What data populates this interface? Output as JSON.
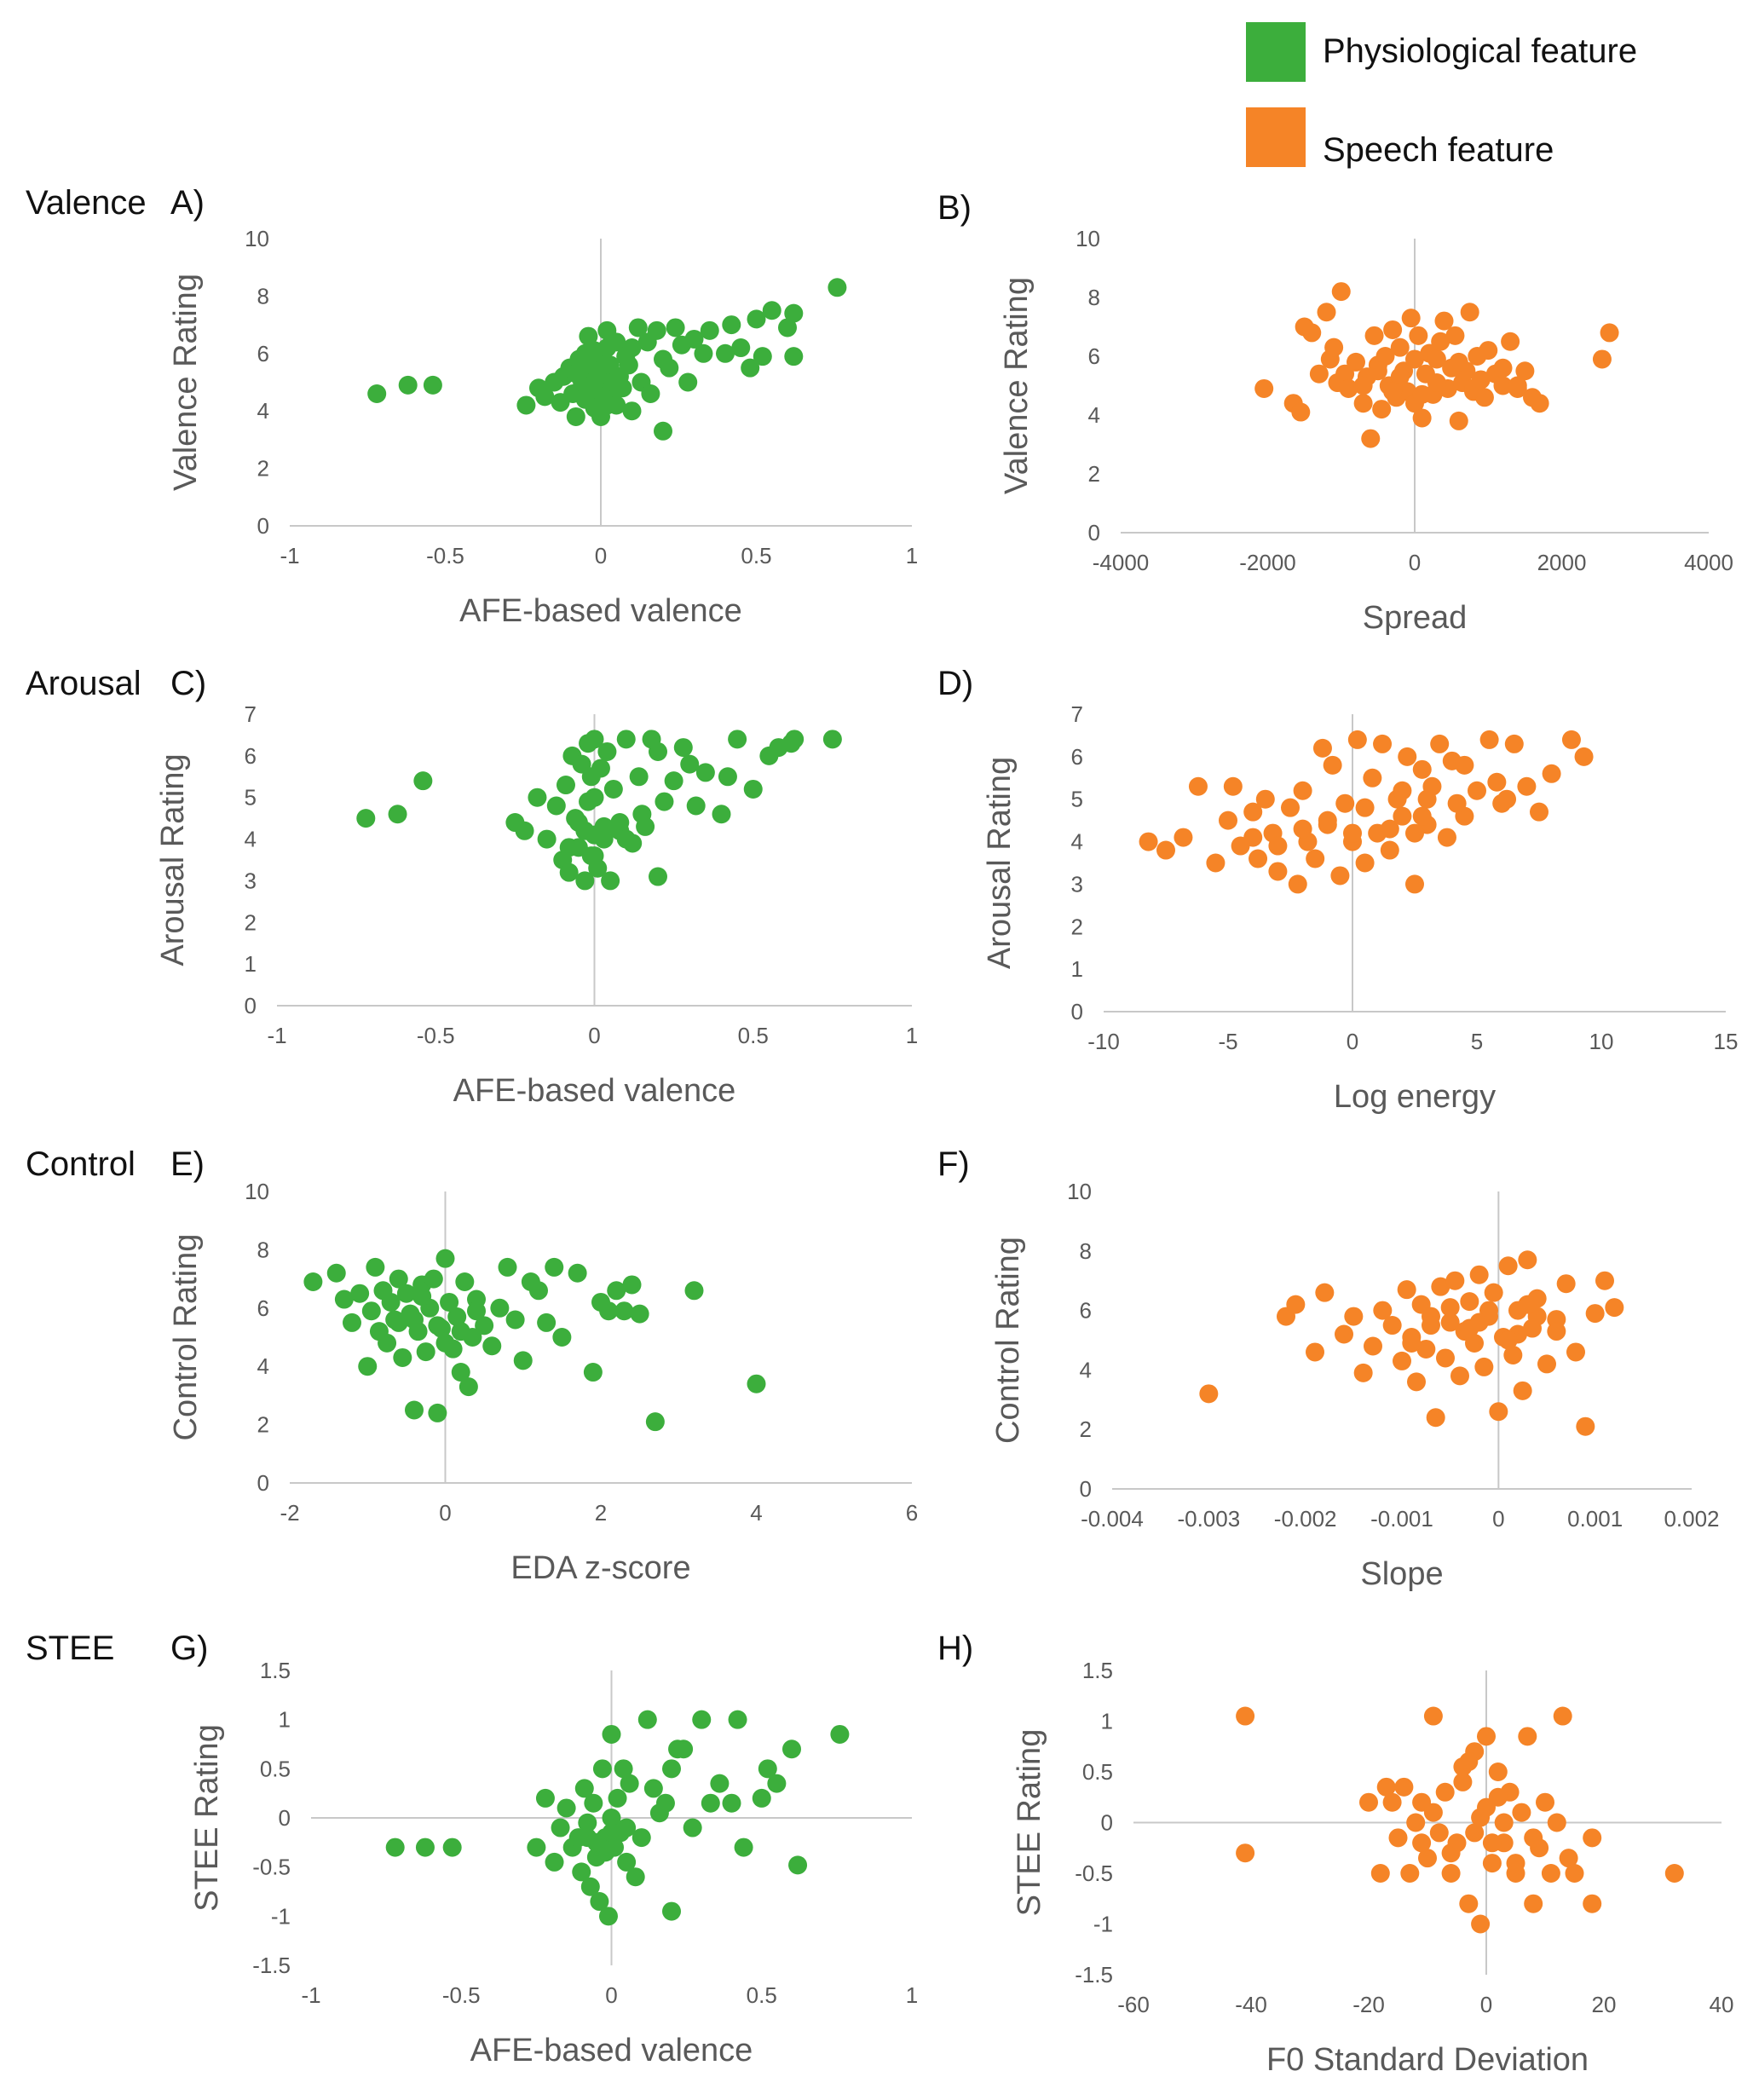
{
  "legend": {
    "items": [
      {
        "label": "Physiological feature",
        "color": "#3cae3c"
      },
      {
        "label": "Speech feature",
        "color": "#f58427"
      }
    ]
  },
  "row_labels": [
    "Valence",
    "Arousal",
    "Control",
    "STEE"
  ],
  "chart_data": [
    {
      "panel": "A)",
      "type": "scatter",
      "color": "#3cae3c",
      "xlabel": "AFE-based valence",
      "ylabel": "Valence Rating",
      "xlim": [
        -1,
        1
      ],
      "ylim": [
        0,
        10
      ],
      "xticks": [
        -1,
        -0.5,
        0,
        0.5,
        1
      ],
      "yticks": [
        0,
        2,
        4,
        6,
        8,
        10
      ],
      "x": [
        -0.72,
        -0.62,
        -0.54,
        -0.24,
        -0.2,
        -0.18,
        -0.15,
        -0.13,
        -0.12,
        -0.1,
        -0.09,
        -0.08,
        -0.07,
        -0.06,
        -0.05,
        -0.05,
        -0.04,
        -0.04,
        -0.03,
        -0.03,
        -0.02,
        -0.02,
        -0.01,
        -0.01,
        0,
        0,
        0,
        0.01,
        0.01,
        0.02,
        0.02,
        0.03,
        0.03,
        0.04,
        0.05,
        0.06,
        0.07,
        0.08,
        0.09,
        0.1,
        0.12,
        0.13,
        0.15,
        0.16,
        0.18,
        0.2,
        0.2,
        0.22,
        0.24,
        0.26,
        0.28,
        0.3,
        0.33,
        0.35,
        0.4,
        0.42,
        0.45,
        0.48,
        0.5,
        0.52,
        0.55,
        0.6,
        0.62,
        0.62,
        0.76,
        0.1,
        0.02,
        -0.08,
        0.05,
        -0.02
      ],
      "y": [
        4.6,
        4.9,
        4.9,
        4.2,
        4.8,
        4.5,
        5.0,
        4.3,
        5.2,
        5.5,
        4.6,
        3.8,
        5.8,
        5.0,
        4.4,
        6.0,
        5.2,
        6.6,
        4.9,
        5.6,
        4.4,
        6.1,
        4.7,
        5.4,
        3.8,
        5.0,
        6.0,
        4.5,
        5.3,
        6.8,
        4.2,
        5.6,
        4.6,
        5.0,
        6.4,
        5.2,
        4.8,
        5.9,
        5.6,
        4.0,
        6.9,
        5.0,
        6.4,
        4.6,
        6.8,
        3.3,
        5.8,
        5.5,
        6.9,
        6.3,
        5.0,
        6.5,
        6.0,
        6.8,
        6.0,
        7.0,
        6.2,
        5.5,
        7.2,
        5.9,
        7.5,
        6.9,
        7.4,
        5.9,
        8.3,
        6.2,
        6.2,
        5.3,
        4.2,
        4.1
      ]
    },
    {
      "panel": "B)",
      "type": "scatter",
      "color": "#f58427",
      "xlabel": "Spread",
      "ylabel": "Valence Rating",
      "xlim": [
        -4000,
        4000
      ],
      "ylim": [
        0,
        10
      ],
      "xticks": [
        -4000,
        -2000,
        0,
        2000,
        4000
      ],
      "yticks": [
        0,
        2,
        4,
        6,
        8,
        10
      ],
      "x": [
        -2050,
        -1650,
        -1550,
        -1500,
        -1400,
        -1300,
        -1200,
        -1150,
        -1100,
        -1050,
        -1000,
        -950,
        -900,
        -800,
        -700,
        -650,
        -600,
        -550,
        -500,
        -450,
        -400,
        -350,
        -300,
        -250,
        -200,
        -150,
        -100,
        -50,
        0,
        0,
        50,
        100,
        150,
        200,
        250,
        300,
        350,
        400,
        450,
        500,
        550,
        600,
        650,
        700,
        750,
        800,
        850,
        900,
        950,
        1000,
        1100,
        1200,
        1300,
        1400,
        1500,
        1600,
        1700,
        2550,
        2650,
        -700,
        -200,
        300,
        800,
        1200,
        -500,
        100,
        600,
        -300,
        900,
        1400
      ],
      "y": [
        4.9,
        4.4,
        4.1,
        7.0,
        6.8,
        5.4,
        7.5,
        5.9,
        6.3,
        5.1,
        8.2,
        5.4,
        4.9,
        5.8,
        4.4,
        5.3,
        3.2,
        6.7,
        5.7,
        4.2,
        6.0,
        5.0,
        6.9,
        4.6,
        6.3,
        5.5,
        4.8,
        7.3,
        5.9,
        4.4,
        6.7,
        3.9,
        5.4,
        6.1,
        4.7,
        5.9,
        6.5,
        7.2,
        4.9,
        5.6,
        6.7,
        3.8,
        5.1,
        5.5,
        7.5,
        4.8,
        6.0,
        5.2,
        4.6,
        6.2,
        5.4,
        5.0,
        6.5,
        4.9,
        5.5,
        4.6,
        4.4,
        5.9,
        6.8,
        5.0,
        5.3,
        5.1,
        4.9,
        5.6,
        5.5,
        4.7,
        5.8,
        4.8,
        5.2,
        5.0
      ]
    },
    {
      "panel": "C)",
      "type": "scatter",
      "color": "#3cae3c",
      "xlabel": "AFE-based valence",
      "ylabel": "Arousal Rating",
      "xlim": [
        -1,
        1
      ],
      "ylim": [
        0,
        7
      ],
      "xticks": [
        -1,
        -0.5,
        0,
        0.5,
        1
      ],
      "yticks": [
        0,
        1,
        2,
        3,
        4,
        5,
        6,
        7
      ],
      "x": [
        -0.72,
        -0.62,
        -0.54,
        -0.25,
        -0.22,
        -0.18,
        -0.15,
        -0.12,
        -0.1,
        -0.09,
        -0.08,
        -0.07,
        -0.06,
        -0.05,
        -0.04,
        -0.03,
        -0.03,
        -0.02,
        -0.02,
        -0.01,
        -0.01,
        0,
        0,
        0,
        0.01,
        0.02,
        0.03,
        0.04,
        0.05,
        0.06,
        0.08,
        0.1,
        0.12,
        0.14,
        0.16,
        0.18,
        0.2,
        0.2,
        0.22,
        0.25,
        0.28,
        0.3,
        0.32,
        0.35,
        0.4,
        0.42,
        0.45,
        0.5,
        0.55,
        0.58,
        0.62,
        0.63,
        0.75,
        -0.05,
        0.03,
        0.08,
        -0.08,
        0.15,
        0.0,
        0.1
      ],
      "y": [
        4.5,
        4.6,
        5.4,
        4.4,
        4.2,
        5.0,
        4.0,
        4.8,
        3.5,
        5.3,
        3.2,
        6.0,
        4.5,
        3.8,
        5.8,
        3.0,
        4.2,
        6.3,
        4.9,
        3.6,
        5.5,
        4.1,
        5.0,
        6.4,
        3.3,
        5.7,
        4.3,
        6.1,
        3.0,
        5.2,
        4.4,
        6.4,
        3.9,
        5.5,
        4.3,
        6.4,
        3.1,
        6.1,
        4.9,
        5.4,
        6.2,
        5.8,
        4.8,
        5.6,
        4.6,
        5.5,
        6.4,
        5.2,
        6.0,
        6.2,
        6.3,
        6.4,
        6.4,
        4.4,
        4.0,
        4.2,
        3.8,
        4.6,
        3.6,
        4.0
      ]
    },
    {
      "panel": "D)",
      "type": "scatter",
      "color": "#f58427",
      "xlabel": "Log energy",
      "ylabel": "Arousal Rating",
      "xlim": [
        -10,
        15
      ],
      "ylim": [
        0,
        7
      ],
      "xticks": [
        -10,
        -5,
        0,
        5,
        10,
        15
      ],
      "yticks": [
        0,
        1,
        2,
        3,
        4,
        5,
        6,
        7
      ],
      "x": [
        -8.2,
        -7.5,
        -6.8,
        -6.2,
        -5.5,
        -5.0,
        -4.8,
        -4.5,
        -4.0,
        -3.8,
        -3.5,
        -3.2,
        -3.0,
        -2.5,
        -2.2,
        -2.0,
        -1.8,
        -1.5,
        -1.2,
        -1.0,
        -0.8,
        -0.5,
        -0.3,
        0,
        0.2,
        0.5,
        0.8,
        1.0,
        1.2,
        1.5,
        1.8,
        2.0,
        2.2,
        2.5,
        2.8,
        3.0,
        3.2,
        3.5,
        3.8,
        4.0,
        4.5,
        5.0,
        5.5,
        6.0,
        6.5,
        7.0,
        7.5,
        8.0,
        8.8,
        9.3,
        -1.0,
        0.5,
        2.5,
        4.2,
        -3.0,
        1.5,
        3.0,
        5.8,
        -2.0,
        0.0,
        2.0,
        4.5,
        6.2,
        -4.0,
        2.8
      ],
      "y": [
        4.0,
        3.8,
        4.1,
        5.3,
        3.5,
        4.5,
        5.3,
        3.9,
        4.7,
        3.6,
        5.0,
        4.2,
        3.3,
        4.8,
        3.0,
        5.2,
        4.0,
        3.6,
        6.2,
        4.4,
        5.8,
        3.2,
        4.9,
        4.0,
        6.4,
        3.5,
        5.5,
        4.2,
        6.3,
        3.8,
        5.0,
        4.6,
        6.0,
        3.0,
        5.7,
        4.4,
        5.3,
        6.3,
        4.1,
        5.9,
        4.6,
        5.2,
        6.4,
        4.9,
        6.3,
        5.3,
        4.7,
        5.6,
        6.4,
        6.0,
        4.5,
        4.8,
        4.2,
        4.9,
        3.9,
        4.3,
        5.0,
        5.4,
        4.3,
        4.2,
        5.2,
        5.8,
        5.0,
        4.1,
        4.6
      ]
    },
    {
      "panel": "E)",
      "type": "scatter",
      "color": "#3cae3c",
      "xlabel": "EDA z-score",
      "ylabel": "Control Rating",
      "xlim": [
        -2,
        6
      ],
      "ylim": [
        0,
        10
      ],
      "xticks": [
        -2,
        0,
        2,
        4,
        6
      ],
      "yticks": [
        0,
        2,
        4,
        6,
        8,
        10
      ],
      "x": [
        -1.7,
        -1.4,
        -1.3,
        -1.2,
        -1.1,
        -1.0,
        -0.95,
        -0.9,
        -0.85,
        -0.8,
        -0.75,
        -0.7,
        -0.65,
        -0.6,
        -0.55,
        -0.5,
        -0.45,
        -0.4,
        -0.35,
        -0.3,
        -0.25,
        -0.2,
        -0.15,
        -0.1,
        -0.05,
        0,
        0.05,
        0.1,
        0.15,
        0.2,
        0.25,
        0.3,
        0.35,
        0.4,
        0.5,
        0.6,
        0.7,
        0.8,
        0.9,
        1.0,
        1.1,
        1.2,
        1.3,
        1.4,
        1.5,
        1.7,
        1.9,
        2.0,
        2.1,
        2.2,
        2.3,
        2.4,
        2.5,
        3.2,
        4.0,
        2.7,
        -0.4,
        -0.1,
        0.2,
        -0.6,
        0.0,
        0.4,
        -0.3
      ],
      "y": [
        6.9,
        7.2,
        6.3,
        5.5,
        6.5,
        4.0,
        5.9,
        7.4,
        5.2,
        6.6,
        4.8,
        6.2,
        5.6,
        7.0,
        4.3,
        6.5,
        5.8,
        2.5,
        5.2,
        6.8,
        4.5,
        6.0,
        7.0,
        2.4,
        5.3,
        7.7,
        6.2,
        4.6,
        5.7,
        3.8,
        6.9,
        3.3,
        5.0,
        6.3,
        5.4,
        4.7,
        6.0,
        7.4,
        5.6,
        4.2,
        6.9,
        6.6,
        5.5,
        7.4,
        5.0,
        7.2,
        3.8,
        6.2,
        5.9,
        6.6,
        5.9,
        6.8,
        5.8,
        6.6,
        3.4,
        2.1,
        5.6,
        5.4,
        5.2,
        5.5,
        4.8,
        5.9,
        6.4
      ]
    },
    {
      "panel": "F)",
      "type": "scatter",
      "color": "#f58427",
      "xlabel": "Slope",
      "ylabel": "Control Rating",
      "xlim": [
        -0.004,
        0.002
      ],
      "ylim": [
        0,
        10
      ],
      "xticks": [
        -0.004,
        -0.003,
        -0.002,
        -0.001,
        0,
        0.001,
        0.002
      ],
      "yticks": [
        0,
        2,
        4,
        6,
        8,
        10
      ],
      "x": [
        -0.003,
        -0.0022,
        -0.0021,
        -0.0019,
        -0.0018,
        -0.0016,
        -0.0015,
        -0.0014,
        -0.0013,
        -0.0012,
        -0.0011,
        -0.001,
        -0.00095,
        -0.0009,
        -0.00085,
        -0.0008,
        -0.00075,
        -0.0007,
        -0.00065,
        -0.0006,
        -0.00055,
        -0.0005,
        -0.00045,
        -0.0004,
        -0.00035,
        -0.0003,
        -0.00025,
        -0.0002,
        -0.00015,
        -0.0001,
        -5e-05,
        0,
        5e-05,
        0.0001,
        0.00015,
        0.0002,
        0.00025,
        0.0003,
        0.00035,
        0.0004,
        0.0005,
        0.0006,
        0.0007,
        0.0008,
        0.0009,
        0.001,
        0.0011,
        0.0012,
        -0.0007,
        -0.0003,
        0.0002,
        -0.0001,
        0.0004,
        -0.0005,
        0.0001,
        0.0006,
        -0.0009,
        -0.0002,
        0.0003
      ],
      "y": [
        3.2,
        5.8,
        6.2,
        4.6,
        6.6,
        5.2,
        5.8,
        3.9,
        4.8,
        6.0,
        5.5,
        4.3,
        6.7,
        5.1,
        3.6,
        6.2,
        4.7,
        5.8,
        2.4,
        6.8,
        4.4,
        5.6,
        7.0,
        3.8,
        5.3,
        6.3,
        4.9,
        7.2,
        4.1,
        5.8,
        6.6,
        2.6,
        5.1,
        7.5,
        4.5,
        6.0,
        3.3,
        7.7,
        5.4,
        6.4,
        4.2,
        5.7,
        6.9,
        4.6,
        2.1,
        5.9,
        7.0,
        6.1,
        5.5,
        5.4,
        5.2,
        6.0,
        5.8,
        6.1,
        5.0,
        5.3,
        4.9,
        5.6,
        6.2
      ]
    },
    {
      "panel": "G)",
      "type": "scatter",
      "color": "#3cae3c",
      "xlabel": "AFE-based valence",
      "ylabel": "STEE Rating",
      "xlim": [
        -1,
        1
      ],
      "ylim": [
        -1.5,
        1.5
      ],
      "xticks": [
        -1,
        -0.5,
        0,
        0.5,
        1
      ],
      "yticks": [
        -1.5,
        -1,
        -0.5,
        0,
        0.5,
        1,
        1.5
      ],
      "x": [
        -0.72,
        -0.62,
        -0.53,
        -0.25,
        -0.22,
        -0.19,
        -0.17,
        -0.15,
        -0.13,
        -0.11,
        -0.1,
        -0.09,
        -0.08,
        -0.07,
        -0.06,
        -0.05,
        -0.04,
        -0.03,
        -0.02,
        -0.01,
        0,
        0,
        0.01,
        0.02,
        0.03,
        0.04,
        0.05,
        0.06,
        0.08,
        0.1,
        0.12,
        0.14,
        0.16,
        0.18,
        0.2,
        0.2,
        0.22,
        0.24,
        0.27,
        0.3,
        0.33,
        0.36,
        0.4,
        0.42,
        0.44,
        0.5,
        0.52,
        0.55,
        0.6,
        0.62,
        0.76,
        -0.05,
        0.0,
        -0.02,
        0.05,
        -0.08
      ],
      "y": [
        -0.3,
        -0.3,
        -0.3,
        -0.3,
        0.2,
        -0.45,
        -0.1,
        0.1,
        -0.3,
        -0.2,
        -0.55,
        0.3,
        -0.05,
        -0.7,
        0.15,
        -0.4,
        -0.85,
        0.5,
        -0.2,
        -1.0,
        0.0,
        0.85,
        -0.3,
        0.2,
        -0.15,
        0.5,
        -0.45,
        0.35,
        -0.6,
        -0.2,
        1.0,
        0.3,
        0.05,
        0.15,
        0.5,
        -0.95,
        0.7,
        0.7,
        -0.1,
        1.0,
        0.15,
        0.35,
        0.15,
        1.0,
        -0.3,
        0.2,
        0.5,
        0.35,
        0.7,
        -0.48,
        0.85,
        -0.25,
        -0.15,
        -0.35,
        -0.1,
        -0.2
      ]
    },
    {
      "panel": "H)",
      "type": "scatter",
      "color": "#f58427",
      "xlabel": "F0 Standard Deviation",
      "ylabel": "STEE Rating",
      "xlim": [
        -60,
        40
      ],
      "ylim": [
        -1.5,
        1.5
      ],
      "xticks": [
        -60,
        -40,
        -20,
        0,
        20,
        40
      ],
      "yticks": [
        -1.5,
        -1,
        -0.5,
        0,
        0.5,
        1,
        1.5
      ],
      "x": [
        -41,
        -41,
        -20,
        -18,
        -17,
        -16,
        -15,
        -14,
        -13,
        -12,
        -11,
        -10,
        -9,
        -8,
        -7,
        -6,
        -5,
        -4,
        -3,
        -2,
        -1,
        0,
        0,
        1,
        2,
        3,
        4,
        5,
        6,
        7,
        8,
        9,
        10,
        11,
        12,
        13,
        14,
        15,
        18,
        18,
        32,
        -9,
        -2,
        3,
        -6,
        1,
        5,
        -4,
        8,
        -11,
        -1,
        2,
        -3
      ],
      "y": [
        1.05,
        -0.3,
        0.2,
        -0.5,
        0.35,
        0.2,
        -0.15,
        0.35,
        -0.5,
        0.0,
        0.2,
        -0.35,
        1.05,
        -0.1,
        0.3,
        -0.5,
        -0.2,
        0.55,
        -0.8,
        0.7,
        -1.0,
        0.15,
        0.85,
        -0.4,
        0.5,
        -0.2,
        0.3,
        -0.5,
        0.1,
        0.85,
        -0.8,
        -0.25,
        0.2,
        -0.5,
        0.0,
        1.05,
        -0.35,
        -0.5,
        -0.15,
        -0.8,
        -0.5,
        0.1,
        -0.1,
        0.0,
        -0.3,
        -0.2,
        -0.4,
        0.4,
        -0.15,
        -0.2,
        0.05,
        0.25,
        0.6
      ]
    }
  ]
}
